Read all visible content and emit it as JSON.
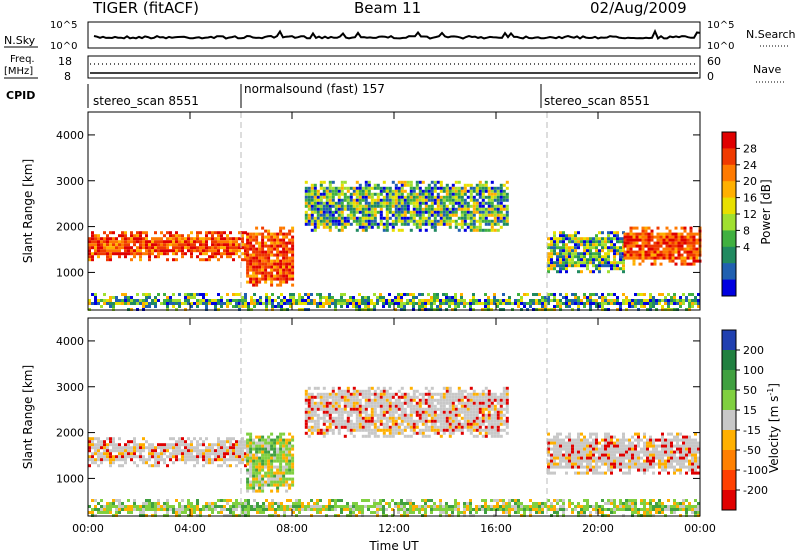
{
  "header": {
    "title": "TIGER (fitACF)",
    "beam": "Beam 11",
    "date": "02/Aug/2009"
  },
  "noise_panel": {
    "left_label": "N.Sky",
    "right_label": "N.Search",
    "left_ticks": [
      "10^5",
      "10^0"
    ],
    "right_ticks": [
      "10^5",
      "10^0"
    ]
  },
  "freq_panel": {
    "left_label_line1": "Freq.",
    "left_label_line2": "[MHz]",
    "left_ticks": [
      "18",
      "8"
    ],
    "right_ticks": [
      "60",
      "0"
    ],
    "right_label": "Nave"
  },
  "cpid": {
    "label": "CPID",
    "segments": [
      {
        "text": "stereo_scan 8551",
        "start_hour": 0
      },
      {
        "text": "normalsound (fast) 157",
        "start_hour": 6
      },
      {
        "text": "stereo_scan 8551",
        "start_hour": 18
      }
    ]
  },
  "chart_data": [
    {
      "type": "heatmap",
      "name": "power-panel",
      "ylabel": "Slant Range [km]",
      "ylim": [
        180,
        4500
      ],
      "yticks": [
        "4000",
        "3000",
        "2000",
        "1000"
      ],
      "xlim": [
        0,
        24
      ],
      "colorbar_label": "Power [dB]",
      "colorbar_ticks": [
        "28",
        "24",
        "20",
        "16",
        "12",
        "8",
        "4"
      ],
      "colorbar_colors": [
        "#e00000",
        "#f03a00",
        "#ff7a00",
        "#ffb000",
        "#e8e000",
        "#a0e030",
        "#40b040",
        "#208a60",
        "#2060b0",
        "#0000e0"
      ],
      "regions": [
        {
          "x0": 0,
          "x1": 6.2,
          "y0": 1250,
          "y1": 1900,
          "level": "high"
        },
        {
          "x0": 6.2,
          "x1": 8.0,
          "y0": 700,
          "y1": 2000,
          "level": "high"
        },
        {
          "x0": 8.5,
          "x1": 16.5,
          "y0": 1900,
          "y1": 3000,
          "level": "low"
        },
        {
          "x0": 18.0,
          "x1": 21.0,
          "y0": 1000,
          "y1": 1900,
          "level": "low"
        },
        {
          "x0": 21.0,
          "x1": 24.0,
          "y0": 1200,
          "y1": 2000,
          "level": "high"
        },
        {
          "x0": 0,
          "x1": 24,
          "y0": 200,
          "y1": 550,
          "level": "low"
        }
      ]
    },
    {
      "type": "heatmap",
      "name": "velocity-panel",
      "ylabel": "Slant Range [km]",
      "xlabel": "Time UT",
      "ylim": [
        180,
        4500
      ],
      "yticks": [
        "4000",
        "3000",
        "2000",
        "1000"
      ],
      "xlim": [
        0,
        24
      ],
      "xticks": [
        "00:00",
        "04:00",
        "08:00",
        "12:00",
        "16:00",
        "20:00",
        "00:00"
      ],
      "colorbar_label": "Velocity [m s",
      "colorbar_label_sup": "-1",
      "colorbar_ticks": [
        "200",
        "100",
        "50",
        "15",
        "-15",
        "-50",
        "-100",
        "-200"
      ],
      "colorbar_colors": [
        "#2040b0",
        "#208040",
        "#40a040",
        "#80d040",
        "#c8c8c8",
        "#ffb000",
        "#ff8000",
        "#ff4000",
        "#e00000"
      ],
      "regions": [
        {
          "x0": 0,
          "x1": 6.2,
          "y0": 1250,
          "y1": 1900,
          "level": "grey"
        },
        {
          "x0": 6.2,
          "x1": 8.0,
          "y0": 700,
          "y1": 2000,
          "level": "green"
        },
        {
          "x0": 8.5,
          "x1": 16.5,
          "y0": 1900,
          "y1": 3000,
          "level": "grey"
        },
        {
          "x0": 18.0,
          "x1": 24.0,
          "y0": 1100,
          "y1": 2000,
          "level": "grey"
        },
        {
          "x0": 0,
          "x1": 24,
          "y0": 200,
          "y1": 550,
          "level": "green"
        }
      ]
    }
  ]
}
